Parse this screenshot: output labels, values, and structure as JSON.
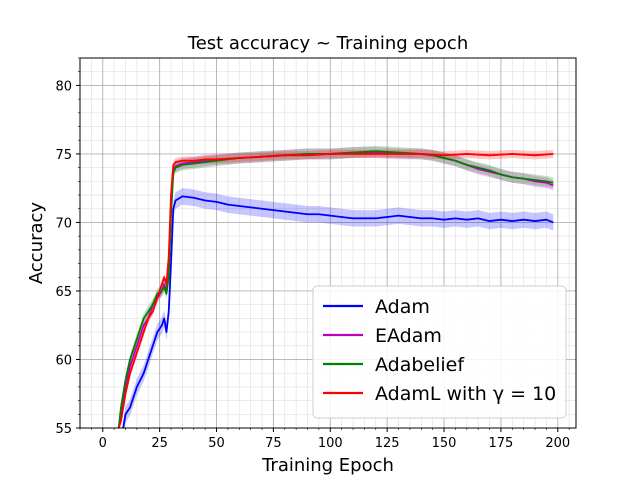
{
  "chart_data": {
    "type": "line",
    "title": "Test accuracy ~ Training epoch",
    "xlabel": "Training Epoch",
    "ylabel": "Accuracy",
    "xlim": [
      -10,
      208
    ],
    "ylim": [
      55,
      82
    ],
    "xticks": [
      0,
      25,
      50,
      75,
      100,
      125,
      150,
      175,
      200
    ],
    "yticks": [
      55,
      60,
      65,
      70,
      75,
      80
    ],
    "x_minor_step": 5,
    "y_minor_step": 1,
    "grid": true,
    "legend_position": "lower-right",
    "series": [
      {
        "name": "Adam",
        "color": "#0000ff",
        "band": 0.6,
        "points": [
          [
            7,
            55.0
          ],
          [
            8,
            54.0
          ],
          [
            10,
            56.0
          ],
          [
            12,
            56.5
          ],
          [
            15,
            58.0
          ],
          [
            18,
            59.0
          ],
          [
            20,
            60.0
          ],
          [
            22,
            61.0
          ],
          [
            24,
            62.0
          ],
          [
            26,
            62.5
          ],
          [
            27,
            63.0
          ],
          [
            28,
            62.0
          ],
          [
            29,
            63.5
          ],
          [
            30,
            67.0
          ],
          [
            31,
            71.0
          ],
          [
            32,
            71.6
          ],
          [
            35,
            71.9
          ],
          [
            40,
            71.8
          ],
          [
            45,
            71.6
          ],
          [
            50,
            71.5
          ],
          [
            55,
            71.3
          ],
          [
            60,
            71.2
          ],
          [
            65,
            71.1
          ],
          [
            70,
            71.0
          ],
          [
            75,
            70.9
          ],
          [
            80,
            70.8
          ],
          [
            85,
            70.7
          ],
          [
            90,
            70.6
          ],
          [
            95,
            70.6
          ],
          [
            100,
            70.5
          ],
          [
            105,
            70.4
          ],
          [
            110,
            70.3
          ],
          [
            115,
            70.3
          ],
          [
            120,
            70.3
          ],
          [
            125,
            70.4
          ],
          [
            130,
            70.5
          ],
          [
            135,
            70.4
          ],
          [
            140,
            70.3
          ],
          [
            145,
            70.3
          ],
          [
            150,
            70.2
          ],
          [
            155,
            70.3
          ],
          [
            160,
            70.2
          ],
          [
            165,
            70.3
          ],
          [
            170,
            70.1
          ],
          [
            175,
            70.2
          ],
          [
            180,
            70.1
          ],
          [
            185,
            70.2
          ],
          [
            190,
            70.1
          ],
          [
            195,
            70.2
          ],
          [
            198,
            70.0
          ]
        ]
      },
      {
        "name": "EAdam",
        "color": "#bf00bf",
        "band": 0.4,
        "points": [
          [
            7,
            55.0
          ],
          [
            8,
            56.0
          ],
          [
            10,
            58.0
          ],
          [
            12,
            59.5
          ],
          [
            15,
            61.0
          ],
          [
            18,
            62.5
          ],
          [
            20,
            63.0
          ],
          [
            22,
            64.0
          ],
          [
            24,
            64.5
          ],
          [
            26,
            65.0
          ],
          [
            27,
            65.5
          ],
          [
            28,
            65.0
          ],
          [
            29,
            66.5
          ],
          [
            30,
            71.0
          ],
          [
            31,
            73.8
          ],
          [
            32,
            74.1
          ],
          [
            35,
            74.3
          ],
          [
            40,
            74.4
          ],
          [
            45,
            74.5
          ],
          [
            50,
            74.6
          ],
          [
            60,
            74.7
          ],
          [
            70,
            74.8
          ],
          [
            80,
            74.9
          ],
          [
            90,
            75.0
          ],
          [
            100,
            75.0
          ],
          [
            110,
            75.1
          ],
          [
            120,
            75.1
          ],
          [
            130,
            75.0
          ],
          [
            140,
            75.0
          ],
          [
            145,
            74.9
          ],
          [
            150,
            74.7
          ],
          [
            155,
            74.5
          ],
          [
            160,
            74.2
          ],
          [
            165,
            73.9
          ],
          [
            170,
            73.7
          ],
          [
            175,
            73.5
          ],
          [
            180,
            73.3
          ],
          [
            185,
            73.2
          ],
          [
            190,
            73.0
          ],
          [
            195,
            72.9
          ],
          [
            198,
            72.7
          ]
        ]
      },
      {
        "name": "Adabelief",
        "color": "#008000",
        "band": 0.4,
        "points": [
          [
            7,
            55.0
          ],
          [
            8,
            56.5
          ],
          [
            10,
            58.5
          ],
          [
            12,
            60.0
          ],
          [
            15,
            61.5
          ],
          [
            18,
            63.0
          ],
          [
            20,
            63.5
          ],
          [
            22,
            64.0
          ],
          [
            24,
            64.8
          ],
          [
            26,
            65.0
          ],
          [
            27,
            65.3
          ],
          [
            28,
            64.8
          ],
          [
            29,
            66.0
          ],
          [
            30,
            70.5
          ],
          [
            31,
            73.6
          ],
          [
            32,
            74.0
          ],
          [
            35,
            74.2
          ],
          [
            40,
            74.3
          ],
          [
            45,
            74.4
          ],
          [
            50,
            74.5
          ],
          [
            60,
            74.7
          ],
          [
            70,
            74.8
          ],
          [
            80,
            74.9
          ],
          [
            90,
            75.0
          ],
          [
            100,
            75.0
          ],
          [
            110,
            75.1
          ],
          [
            120,
            75.2
          ],
          [
            130,
            75.1
          ],
          [
            140,
            75.0
          ],
          [
            145,
            74.9
          ],
          [
            150,
            74.7
          ],
          [
            155,
            74.5
          ],
          [
            160,
            74.2
          ],
          [
            165,
            74.0
          ],
          [
            170,
            73.8
          ],
          [
            175,
            73.5
          ],
          [
            180,
            73.3
          ],
          [
            185,
            73.2
          ],
          [
            190,
            73.1
          ],
          [
            195,
            73.0
          ],
          [
            198,
            72.9
          ]
        ]
      },
      {
        "name": "AdamL with γ = 10",
        "color": "#ff0000",
        "band": 0.3,
        "points": [
          [
            7,
            55.0
          ],
          [
            8,
            55.5
          ],
          [
            10,
            57.5
          ],
          [
            12,
            59.0
          ],
          [
            15,
            60.5
          ],
          [
            18,
            62.0
          ],
          [
            20,
            63.0
          ],
          [
            22,
            63.5
          ],
          [
            24,
            64.5
          ],
          [
            26,
            65.5
          ],
          [
            27,
            66.0
          ],
          [
            28,
            65.5
          ],
          [
            29,
            67.5
          ],
          [
            30,
            72.0
          ],
          [
            31,
            74.2
          ],
          [
            32,
            74.4
          ],
          [
            35,
            74.5
          ],
          [
            40,
            74.5
          ],
          [
            45,
            74.6
          ],
          [
            50,
            74.6
          ],
          [
            60,
            74.7
          ],
          [
            70,
            74.8
          ],
          [
            80,
            74.9
          ],
          [
            90,
            74.9
          ],
          [
            100,
            75.0
          ],
          [
            110,
            75.0
          ],
          [
            120,
            75.0
          ],
          [
            130,
            75.0
          ],
          [
            140,
            75.0
          ],
          [
            150,
            74.9
          ],
          [
            160,
            75.0
          ],
          [
            170,
            74.9
          ],
          [
            180,
            75.0
          ],
          [
            190,
            74.9
          ],
          [
            198,
            75.0
          ]
        ]
      }
    ]
  }
}
